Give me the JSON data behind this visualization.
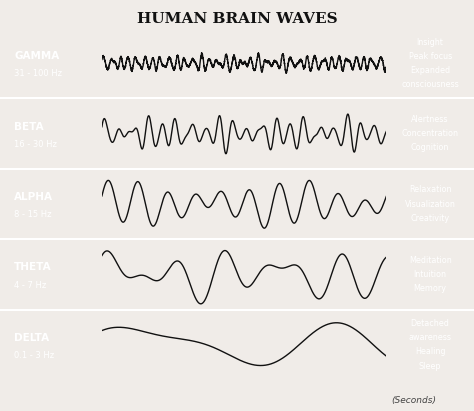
{
  "title": "HUMAN BRAIN WAVES",
  "bands": [
    {
      "name": "GAMMA",
      "freq": "31 - 100 Hz",
      "bg_color": "#a8b8c8",
      "label_bg": "#8899aa",
      "freq_hz": 35,
      "amplitude": 0.38,
      "description": [
        "Insight",
        "Peak focus",
        "Expanded",
        "consciousness"
      ]
    },
    {
      "name": "BETA",
      "freq": "16 - 30 Hz",
      "bg_color": "#aab48a",
      "label_bg": "#8a9870",
      "freq_hz": 20,
      "amplitude": 0.6,
      "description": [
        "Alertness",
        "Concentration",
        "Cognition"
      ]
    },
    {
      "name": "ALPHA",
      "freq": "8 - 15 Hz",
      "bg_color": "#e8c87a",
      "label_bg": "#c8a860",
      "freq_hz": 10,
      "amplitude": 0.75,
      "description": [
        "Relaxation",
        "Visualization",
        "Creativity"
      ]
    },
    {
      "name": "THETA",
      "freq": "4 - 7 Hz",
      "bg_color": "#e0a868",
      "label_bg": "#c09050",
      "freq_hz": 5,
      "amplitude": 0.82,
      "description": [
        "Meditation",
        "Intuition",
        "Memory"
      ]
    },
    {
      "name": "DELTA",
      "freq": "0.1 - 3 Hz",
      "bg_color": "#c87858",
      "label_bg": "#aa6040",
      "freq_hz": 1.5,
      "amplitude": 0.88,
      "description": [
        "Detached",
        "awareness",
        "Healing",
        "Sleep"
      ]
    }
  ],
  "xlabel": "(Seconds)",
  "xticks": [
    0.0,
    0.2,
    0.4,
    0.6,
    0.8,
    1.0
  ],
  "bg_outer": "#f0ece8",
  "wave_color": "#111111",
  "wave_linewidth": 1.0,
  "right_desc_bg": "#a0a0a0"
}
